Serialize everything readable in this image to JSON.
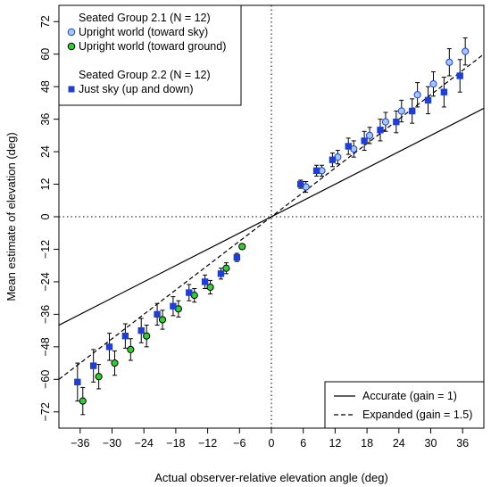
{
  "chart_data": {
    "type": "scatter",
    "xlabel": "Actual observer-relative elevation angle (deg)",
    "ylabel": "Mean estimate of elevation (deg)",
    "xlim": [
      -40,
      40
    ],
    "ylim": [
      -78,
      78
    ],
    "xticks": [
      -36,
      -30,
      -24,
      -18,
      -12,
      -6,
      0,
      6,
      12,
      18,
      24,
      30,
      36
    ],
    "yticks": [
      -72,
      -60,
      -48,
      -36,
      -24,
      -12,
      0,
      12,
      24,
      36,
      48,
      60,
      72
    ],
    "xtick_labels": [
      "−36",
      "−30",
      "−24",
      "−18",
      "−12",
      "−6",
      "0",
      "6",
      "12",
      "18",
      "24",
      "30",
      "36"
    ],
    "ytick_labels": [
      "−72",
      "−60",
      "−48",
      "−36",
      "−24",
      "−12",
      "0",
      "12",
      "24",
      "36",
      "48",
      "60",
      "72"
    ],
    "reference_lines": [
      {
        "name": "Accurate (gain = 1)",
        "slope": 1,
        "style": "solid"
      },
      {
        "name": "Expanded (gain = 1.5)",
        "slope": 1.5,
        "style": "dashed"
      }
    ],
    "zero_lines": {
      "style": "dotted"
    },
    "legend_top": {
      "group1_title": "Seated Group 2.1 (N = 12)",
      "group2_title": "Seated Group 2.2 (N = 12)"
    },
    "legend_bottom_position": "bottom-right",
    "legend_top_position": "top-left",
    "series": [
      {
        "name": "Upright world (toward sky)",
        "marker": "circle",
        "color": "#a4c8f0",
        "edge": "#1f3fd0",
        "x": [
          6.5,
          9.5,
          12.5,
          15.5,
          18.5,
          21.5,
          24.5,
          27.5,
          30.5,
          33.5,
          36.5
        ],
        "y": [
          11,
          17,
          22,
          25,
          30,
          35,
          39,
          45,
          49,
          57,
          61
        ],
        "err": [
          2,
          2,
          2.5,
          3,
          3,
          3.5,
          4,
          4.5,
          4.5,
          5,
          5
        ]
      },
      {
        "name": "Upright world (toward ground)",
        "marker": "circle",
        "color": "#33cc33",
        "edge": "#000000",
        "x": [
          -5.5,
          -8.5,
          -11.5,
          -14.5,
          -17.5,
          -20.5,
          -23.5,
          -26.5,
          -29.5,
          -32.5,
          -35.5
        ],
        "y": [
          -11,
          -19,
          -26,
          -29,
          -34,
          -38,
          -44,
          -49,
          -54,
          -59,
          -68
        ],
        "err": [
          1,
          2,
          2.5,
          2.5,
          3,
          3.5,
          4,
          4,
          4.5,
          4.5,
          5
        ]
      },
      {
        "name": "Just sky (up and down)",
        "marker": "square",
        "color": "#1f3fd0",
        "edge": "#1f3fd0",
        "x": [
          5.5,
          8.5,
          11.5,
          14.5,
          17.5,
          20.5,
          23.5,
          26.5,
          29.5,
          32.5,
          35.5,
          -6.5,
          -9.5,
          -12.5,
          -15.5,
          -18.5,
          -21.5,
          -24.5,
          -27.5,
          -30.5,
          -33.5,
          -36.5
        ],
        "y": [
          12,
          17,
          21,
          26,
          28,
          32,
          35,
          39,
          43,
          46,
          52,
          -15,
          -21,
          -24,
          -28,
          -33,
          -36,
          -42,
          -44,
          -48,
          -55,
          -61
        ],
        "err": [
          1.5,
          2,
          2.5,
          3,
          3.5,
          4,
          4,
          4.5,
          5,
          5.5,
          6,
          1.5,
          2,
          2.5,
          3,
          3.5,
          4,
          4.5,
          4.5,
          5,
          6,
          7
        ]
      }
    ]
  }
}
